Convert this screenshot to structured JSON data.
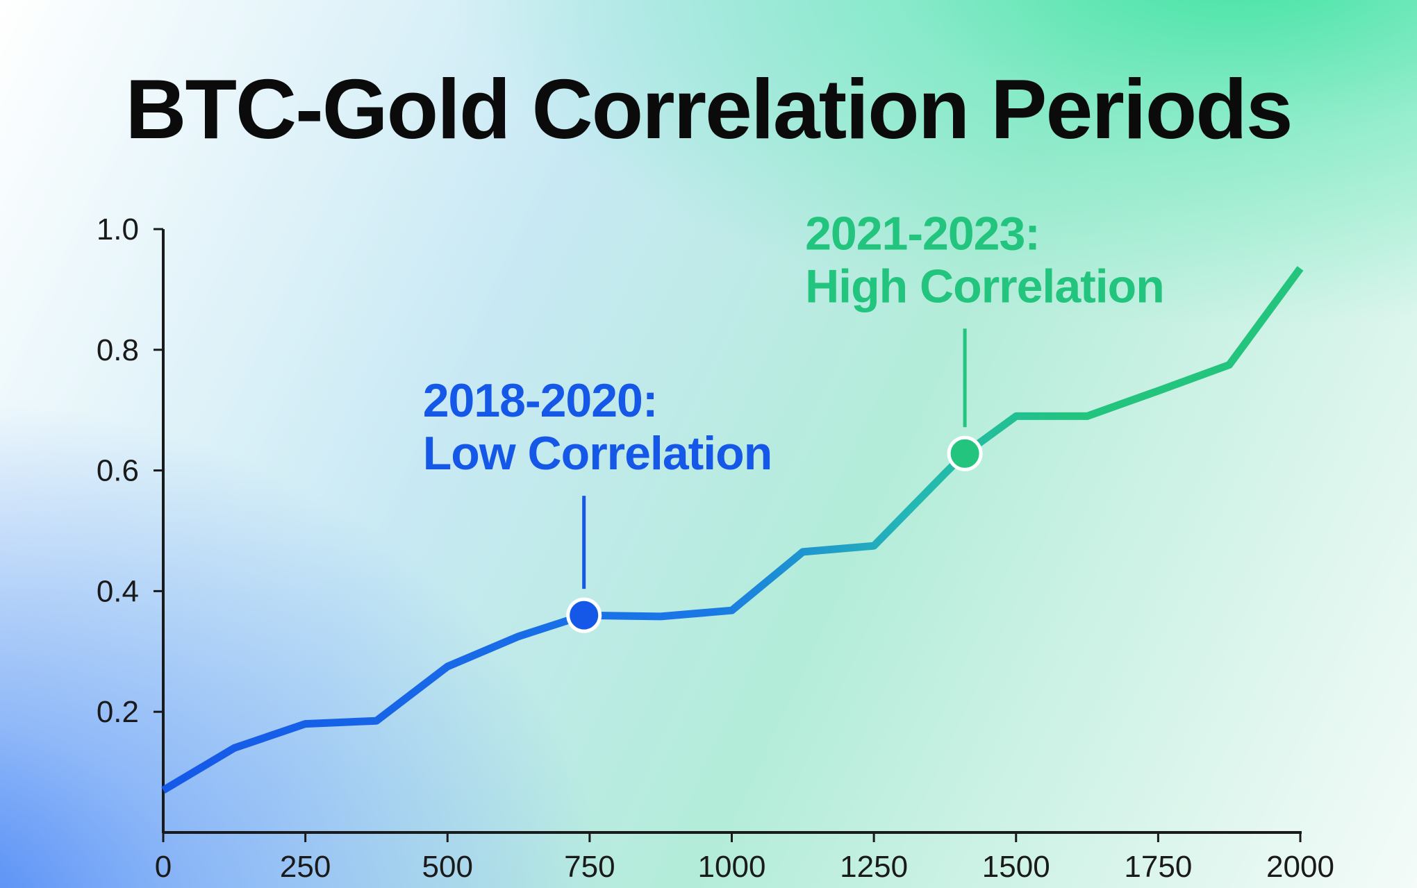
{
  "chart_data": {
    "type": "line",
    "title": "BTC-Gold Correlation Periods",
    "xlim": [
      0,
      2000
    ],
    "ylim": [
      0,
      1.0
    ],
    "x_ticks": [
      "0",
      "250",
      "500",
      "750",
      "1000",
      "1250",
      "1500",
      "1750",
      "2000"
    ],
    "y_ticks": [
      "0.2",
      "0.4",
      "0.6",
      "0.8",
      "1.0"
    ],
    "grid": false,
    "colors": {
      "low": "#1558e8",
      "high": "#22c47e"
    },
    "series": [
      {
        "x": [
          0,
          125,
          250,
          375,
          500,
          625,
          740,
          875,
          1000,
          1125,
          1250,
          1375,
          1410,
          1500,
          1625,
          1750,
          1875,
          2000
        ],
        "y": [
          0.07,
          0.14,
          0.18,
          0.185,
          0.275,
          0.325,
          0.36,
          0.358,
          0.368,
          0.465,
          0.475,
          0.595,
          0.628,
          0.69,
          0.69,
          0.732,
          0.775,
          0.935
        ]
      }
    ],
    "annotations": [
      {
        "line1": "2018-2020:",
        "line2": "Low Correlation",
        "x": 740,
        "y": 0.36,
        "color": "#1558e8"
      },
      {
        "line1": "2021-2023:",
        "line2": "High Correlation",
        "x": 1410,
        "y": 0.628,
        "color": "#22c47e"
      }
    ]
  }
}
